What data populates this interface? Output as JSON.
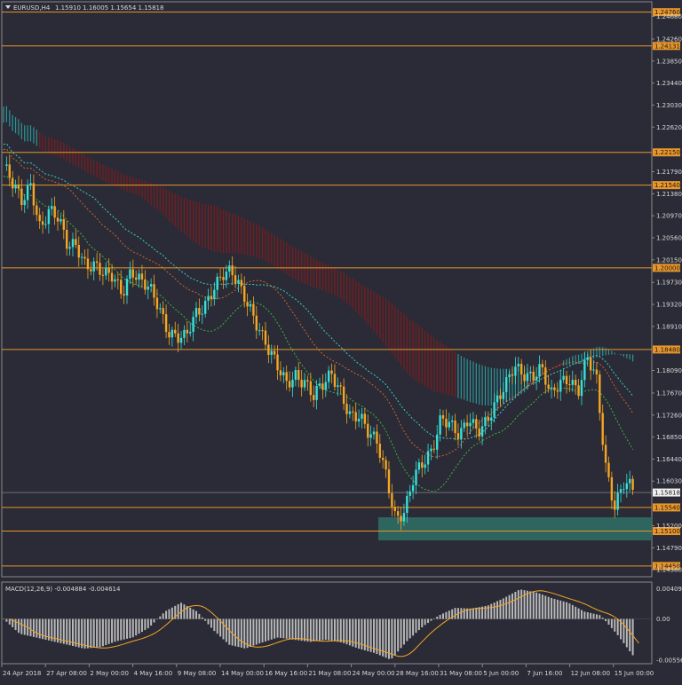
{
  "header": {
    "symbol": "EURUSD,H4",
    "ohlc": "1.15910 1.16005 1.15654 1.15818"
  },
  "colors": {
    "background": "#2a2b36",
    "axis": "#8a8a8a",
    "text": "#d8d8d8",
    "level_line": "#e8962a",
    "candle": "#f5a623",
    "candle_bull": "#37e0d8",
    "cloud_bear": "#8b1a1a",
    "cloud_bull": "#2aa8a8",
    "tenkan": "#37e0d8",
    "kijun": "#e06a2a",
    "chikou": "#3ec43e",
    "zone": "#2f6b63",
    "macd_hist": "#b8b8b8",
    "macd_signal": "#f5a623"
  },
  "price_levels": [
    {
      "label": "1.24760",
      "value": 1.2476
    },
    {
      "label": "1.24131",
      "value": 1.24131
    },
    {
      "label": "1.22150",
      "value": 1.2215
    },
    {
      "label": "1.21540",
      "value": 1.2154
    },
    {
      "label": "1.20000",
      "value": 1.2
    },
    {
      "label": "1.18480",
      "value": 1.1848
    },
    {
      "label": "1.15540",
      "value": 1.1554
    },
    {
      "label": "1.15100",
      "value": 1.151
    },
    {
      "label": "1.14450",
      "value": 1.1445
    }
  ],
  "current_price": {
    "label": "1.15818",
    "value": 1.15818
  },
  "price_ticks": [
    "1.24680",
    "1.24260",
    "1.23850",
    "1.23440",
    "1.23030",
    "1.22620",
    "1.21790",
    "1.21380",
    "1.20970",
    "1.20560",
    "1.20150",
    "1.19730",
    "1.19320",
    "1.18910",
    "1.18090",
    "1.17670",
    "1.17260",
    "1.16850",
    "1.16440",
    "1.16030",
    "1.15200",
    "1.14790",
    "1.14380"
  ],
  "time_labels": [
    "24 Apr 2018",
    "27 Apr 08:00",
    "2 May 00:00",
    "4 May 16:00",
    "9 May 08:00",
    "14 May 00:00",
    "16 May 16:00",
    "21 May 08:00",
    "24 May 00:00",
    "28 May 16:00",
    "31 May 08:00",
    "5 Jun 00:00",
    "7 Jun 16:00",
    "12 Jun 08:00",
    "15 Jun 00:00"
  ],
  "macd": {
    "label": "MACD(12,26,9) -0.004884 -0.004614",
    "ticks": [
      "0.00409",
      "0.00",
      "-0.005568"
    ]
  },
  "chart_data": {
    "type": "candlestick",
    "price_axis_range": [
      1.1425,
      1.2492
    ],
    "close_path": [
      1.219,
      1.215,
      1.212,
      1.216,
      1.208,
      1.2105,
      1.2085,
      1.204,
      1.205,
      1.201,
      1.2,
      1.198,
      1.1985,
      1.196,
      1.2,
      1.197,
      1.1955,
      1.193,
      1.189,
      1.1875,
      1.1865,
      1.1905,
      1.193,
      1.197,
      1.199,
      1.1985,
      1.1955,
      1.193,
      1.1895,
      1.185,
      1.181,
      1.178,
      1.1805,
      1.1795,
      1.176,
      1.1775,
      1.18,
      1.1775,
      1.173,
      1.172,
      1.1685,
      1.1675,
      1.162,
      1.1535,
      1.154,
      1.1605,
      1.164,
      1.167,
      1.1725,
      1.17,
      1.168,
      1.1725,
      1.1705,
      1.1715,
      1.174,
      1.1775,
      1.1825,
      1.181,
      1.1795,
      1.1805,
      1.176,
      1.1795,
      1.18,
      1.1765,
      1.1825,
      1.1795,
      1.164,
      1.156,
      1.1595,
      1.1582
    ],
    "macd_path": [
      0.0,
      -0.002,
      -0.0025,
      -0.003,
      -0.0035,
      -0.004,
      -0.0038,
      -0.003,
      -0.0025,
      -0.0012,
      0.001,
      0.0022,
      0.001,
      -0.0015,
      -0.0035,
      -0.004,
      -0.0032,
      -0.0025,
      -0.0028,
      -0.0031,
      -0.0028,
      -0.0032,
      -0.004,
      -0.0046,
      -0.0055,
      -0.003,
      -0.001,
      0.0005,
      0.0015,
      0.0014,
      0.0018,
      0.0028,
      0.004,
      0.0036,
      0.0028,
      0.0022,
      0.001,
      0.0005,
      -0.002,
      -0.0049
    ]
  }
}
